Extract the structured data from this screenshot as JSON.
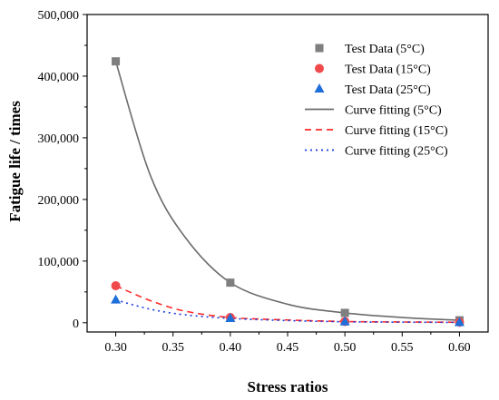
{
  "chart_data": {
    "type": "scatter",
    "xlabel": "Stress ratios",
    "ylabel": "Fatigue life / times",
    "xlim": [
      0.275,
      0.625
    ],
    "ylim": [
      -15000,
      500000
    ],
    "xticks": [
      0.3,
      0.35,
      0.4,
      0.45,
      0.5,
      0.55,
      0.6
    ],
    "xtick_labels": [
      "0.30",
      "0.35",
      "0.40",
      "0.45",
      "0.50",
      "0.55",
      "0.60"
    ],
    "yticks": [
      0,
      100000,
      200000,
      300000,
      400000,
      500000
    ],
    "ytick_labels": [
      "0",
      "100,000",
      "200,000",
      "300,000",
      "400,000",
      "500,000"
    ],
    "legend_position": "top-right",
    "grid": false,
    "scatter_series": [
      {
        "name": "Test Data (5°C)",
        "marker": "square",
        "color": "#7f7f7f",
        "x": [
          0.3,
          0.4,
          0.5,
          0.6
        ],
        "y": [
          424000,
          65000,
          16000,
          4000
        ]
      },
      {
        "name": "Test Data (15°C)",
        "marker": "circle",
        "color": "#f0494b",
        "x": [
          0.3,
          0.4,
          0.5,
          0.6
        ],
        "y": [
          60000,
          8500,
          2000,
          800
        ]
      },
      {
        "name": "Test Data (25°C)",
        "marker": "triangle",
        "color": "#1e6fd9",
        "x": [
          0.3,
          0.4,
          0.5,
          0.6
        ],
        "y": [
          37000,
          7000,
          1500,
          500
        ]
      }
    ],
    "fit_series": [
      {
        "name": "Curve fitting (5°C)",
        "style": "solid",
        "color": "#6b6b6b",
        "x": [
          0.3,
          0.33,
          0.36,
          0.4,
          0.45,
          0.5,
          0.55,
          0.6
        ],
        "y": [
          424000,
          240000,
          140000,
          65000,
          30000,
          16000,
          8500,
          4000
        ]
      },
      {
        "name": "Curve fitting (15°C)",
        "style": "dashed",
        "color": "#ff2a2a",
        "x": [
          0.3,
          0.33,
          0.36,
          0.4,
          0.45,
          0.5,
          0.55,
          0.6
        ],
        "y": [
          60000,
          36000,
          19000,
          8500,
          4500,
          2000,
          1200,
          800
        ]
      },
      {
        "name": "Curve fitting (25°C)",
        "style": "dotted",
        "color": "#1a3ae0",
        "x": [
          0.3,
          0.33,
          0.36,
          0.4,
          0.45,
          0.5,
          0.55,
          0.6
        ],
        "y": [
          37000,
          22000,
          13000,
          7000,
          3500,
          1500,
          900,
          500
        ]
      }
    ]
  }
}
